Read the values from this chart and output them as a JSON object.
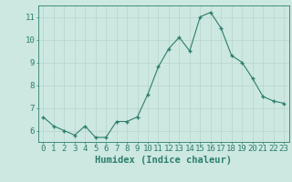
{
  "x": [
    0,
    1,
    2,
    3,
    4,
    5,
    6,
    7,
    8,
    9,
    10,
    11,
    12,
    13,
    14,
    15,
    16,
    17,
    18,
    19,
    20,
    21,
    22,
    23
  ],
  "y": [
    6.6,
    6.2,
    6.0,
    5.8,
    6.2,
    5.7,
    5.7,
    6.4,
    6.4,
    6.6,
    7.6,
    8.8,
    9.6,
    10.1,
    9.5,
    11.0,
    11.2,
    10.5,
    9.3,
    9.0,
    8.3,
    7.5,
    7.3,
    7.2
  ],
  "line_color": "#2e7d6e",
  "marker_color": "#2e7d6e",
  "bg_color": "#cce8e0",
  "grid_color": "#b8d4cc",
  "axis_color": "#2e7d6e",
  "xlabel": "Humidex (Indice chaleur)",
  "ylim": [
    5.5,
    11.5
  ],
  "xlim": [
    -0.5,
    23.5
  ],
  "yticks": [
    6,
    7,
    8,
    9,
    10,
    11
  ],
  "xticks": [
    0,
    1,
    2,
    3,
    4,
    5,
    6,
    7,
    8,
    9,
    10,
    11,
    12,
    13,
    14,
    15,
    16,
    17,
    18,
    19,
    20,
    21,
    22,
    23
  ],
  "tick_fontsize": 6.5,
  "label_fontsize": 7.5,
  "fig_width": 3.2,
  "fig_height": 2.0,
  "dpi": 100
}
